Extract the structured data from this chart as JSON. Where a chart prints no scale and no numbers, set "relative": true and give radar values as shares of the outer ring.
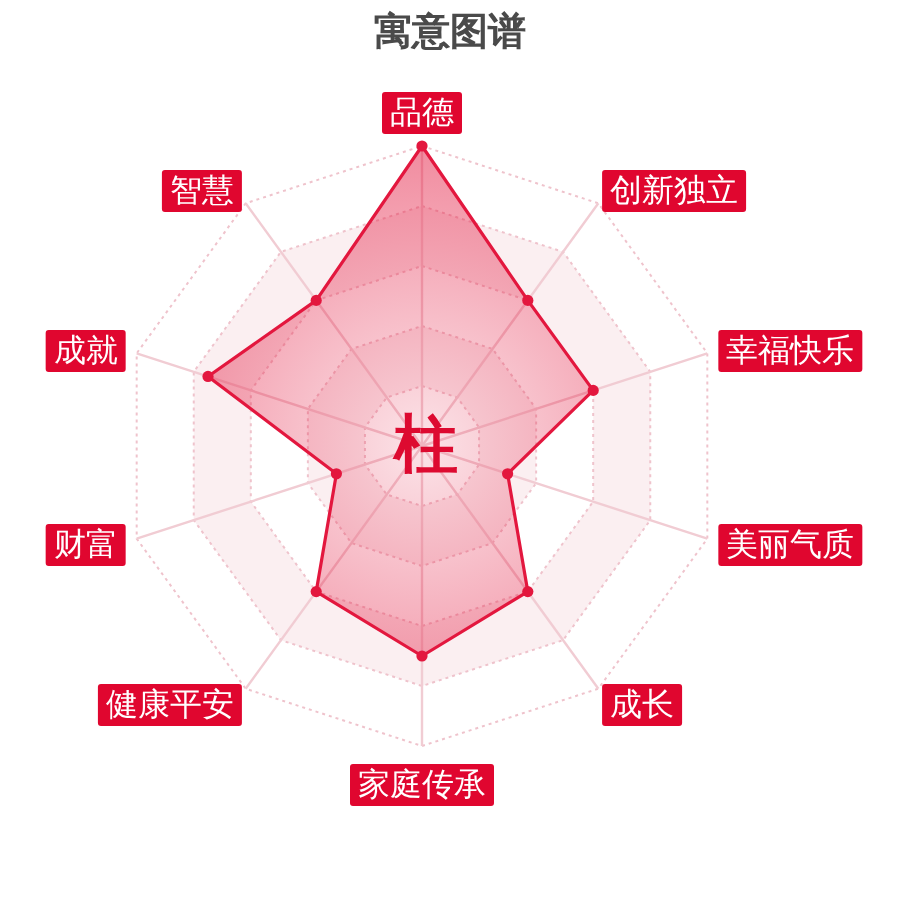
{
  "chart_data": {
    "type": "radar",
    "title": "寓意图谱",
    "categories": [
      "品德",
      "创新独立",
      "幸福快乐",
      "美丽气质",
      "成长",
      "家庭传承",
      "健康平安",
      "财富",
      "成就",
      "智慧"
    ],
    "relative": true,
    "series": [
      {
        "color": "#e3173e",
        "values": [
          1,
          0.6,
          0.6,
          0.3,
          0.6,
          0.7,
          0.6,
          0.3,
          0.75,
          0.6
        ]
      }
    ],
    "marker": "circle",
    "grid": true,
    "annotations": [
      "柱"
    ]
  }
}
